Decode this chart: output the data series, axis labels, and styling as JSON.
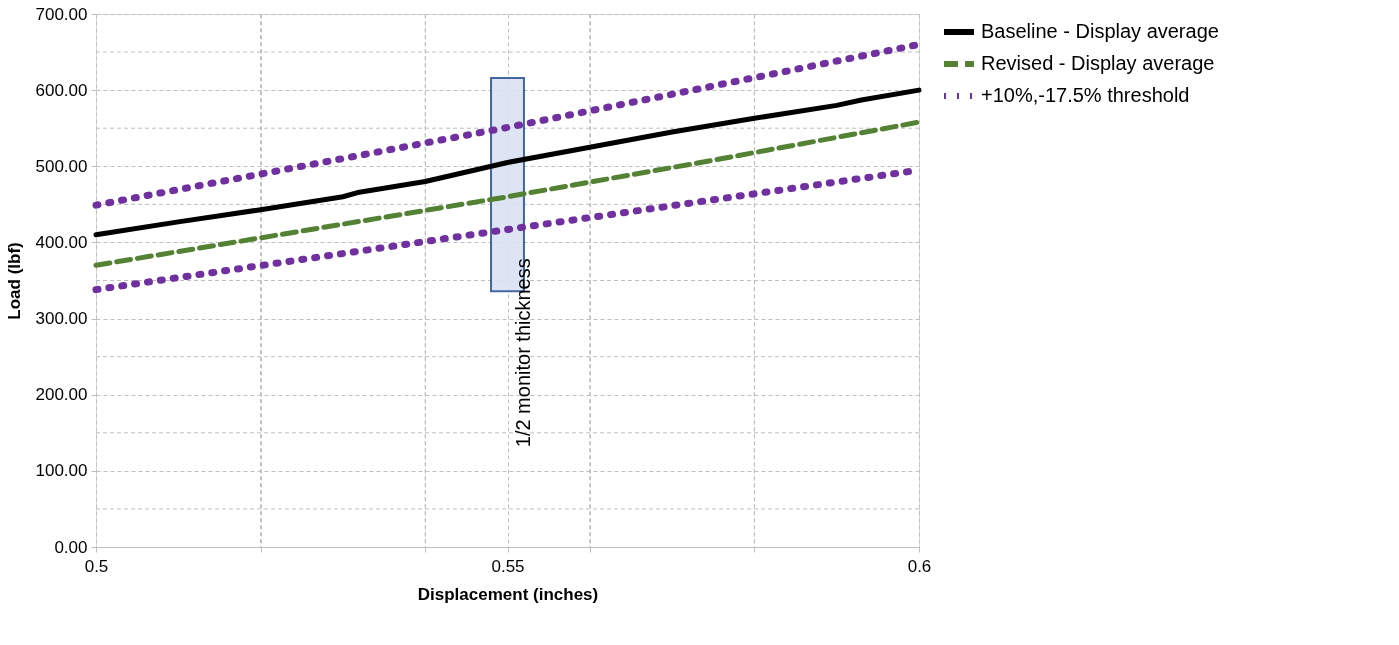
{
  "chart_data": {
    "type": "line",
    "xlabel": "Displacement (inches)",
    "ylabel": "Load (lbf)",
    "xlim": [
      0.5,
      0.6
    ],
    "xticks": [
      0.5,
      {
        "value": 0.52,
        "label": null
      },
      {
        "value": 0.54,
        "label": null
      },
      0.55,
      {
        "value": 0.56,
        "label": null
      },
      {
        "value": 0.58,
        "label": null
      },
      0.6
    ],
    "ylim": [
      0,
      700
    ],
    "yticks": [
      {
        "value": 0,
        "label": "0.00"
      },
      {
        "value": 50,
        "label": null
      },
      {
        "value": 100,
        "label": "100.00"
      },
      {
        "value": 150,
        "label": null
      },
      {
        "value": 200,
        "label": "200.00"
      },
      {
        "value": 250,
        "label": null
      },
      {
        "value": 300,
        "label": "300.00"
      },
      {
        "value": 350,
        "label": null
      },
      {
        "value": 400,
        "label": "400.00"
      },
      {
        "value": 450,
        "label": null
      },
      {
        "value": 500,
        "label": "500.00"
      },
      {
        "value": 550,
        "label": null
      },
      {
        "value": 600,
        "label": "600.00"
      },
      {
        "value": 650,
        "label": null
      },
      {
        "value": 700,
        "label": "700.00"
      }
    ],
    "grid": true,
    "legend": "right",
    "series": [
      {
        "name": "Baseline - Display average",
        "color": "#000000",
        "line_style": "solid",
        "x": [
          0.5,
          0.51,
          0.52,
          0.53,
          0.532,
          0.54,
          0.55,
          0.56,
          0.57,
          0.58,
          0.59,
          0.593,
          0.6
        ],
        "values": [
          410,
          427,
          443,
          460,
          466,
          480,
          505,
          525,
          545,
          563,
          580,
          587,
          600
        ]
      },
      {
        "name": "Revised - Display average",
        "color": "#548235",
        "line_style": "dashed",
        "x": [
          0.5,
          0.525,
          0.55,
          0.575,
          0.6
        ],
        "values": [
          370,
          415,
          460,
          508,
          558
        ]
      },
      {
        "name": "+10%,-17.5% threshold",
        "color": "#7030a0",
        "line_style": "dotted",
        "x": [
          0.5,
          0.55,
          0.6
        ],
        "values": [
          449,
          551,
          660
        ]
      },
      {
        "color": "#7030a0",
        "line_style": "dotted",
        "x": [
          0.5,
          0.55,
          0.6
        ],
        "values": [
          338,
          417,
          495
        ]
      }
    ],
    "bands": [
      {
        "axis": "x",
        "from": 0.548,
        "to": 0.552,
        "label": "1/2 monitor thickness",
        "color": "#dae3f3"
      }
    ]
  }
}
